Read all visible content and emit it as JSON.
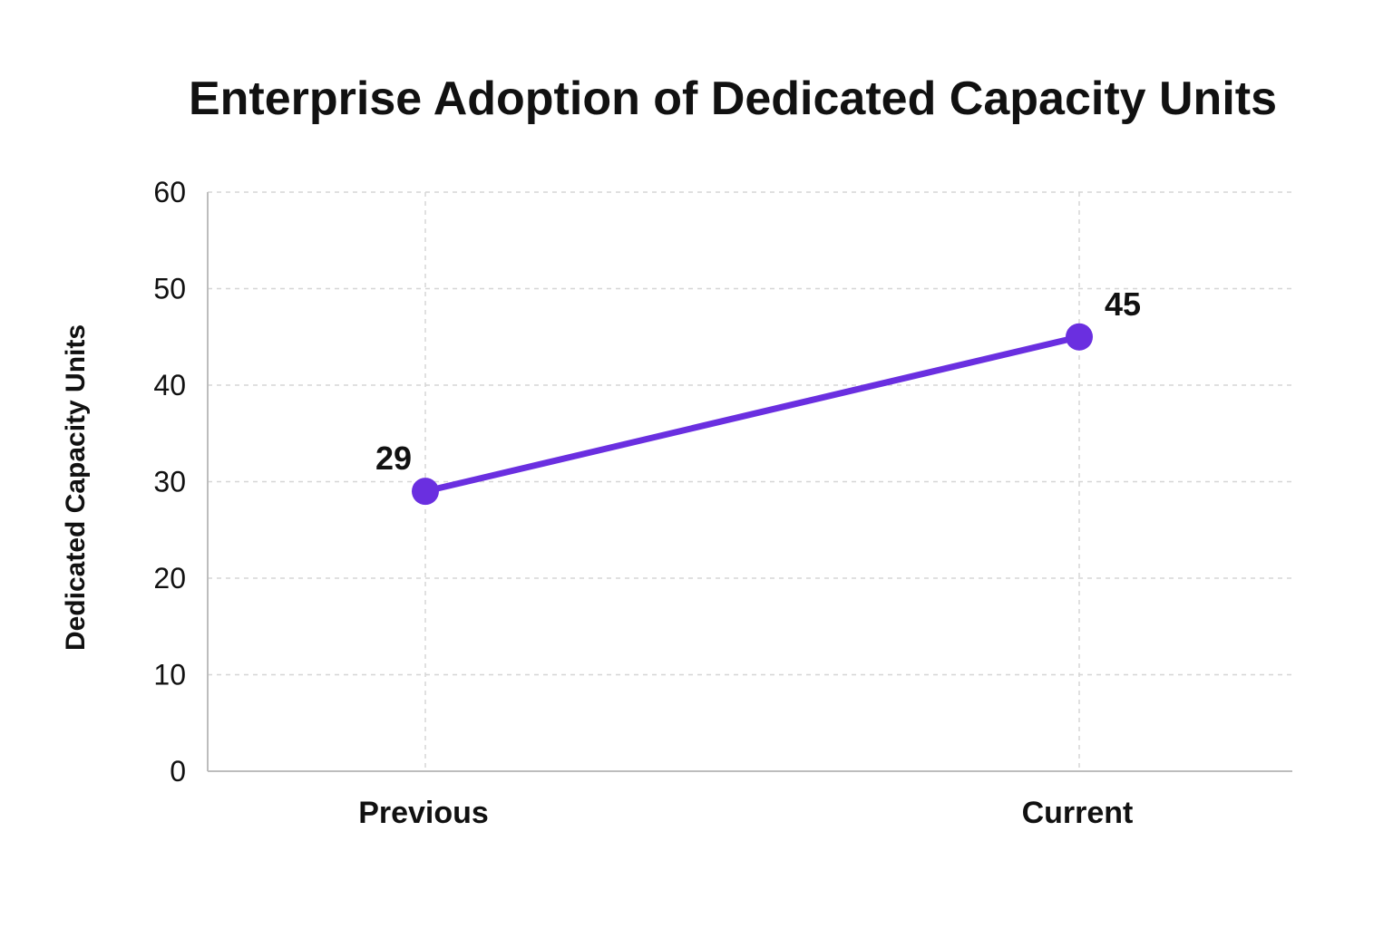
{
  "chart_data": {
    "type": "line",
    "title": "Enterprise Adoption of Dedicated Capacity Units",
    "xlabel": "",
    "ylabel": "Dedicated Capacity Units",
    "categories": [
      "Previous",
      "Current"
    ],
    "series": [
      {
        "values": [
          29,
          45
        ],
        "color": "#6a2fe0"
      }
    ],
    "data_labels": [
      "29",
      "45"
    ],
    "ylim": [
      0,
      60
    ],
    "yticks": [
      0,
      10,
      20,
      30,
      40,
      50,
      60
    ],
    "ytick_labels": [
      "0",
      "10",
      "20",
      "30",
      "40",
      "50",
      "60"
    ],
    "grid": true,
    "legend": "none"
  }
}
